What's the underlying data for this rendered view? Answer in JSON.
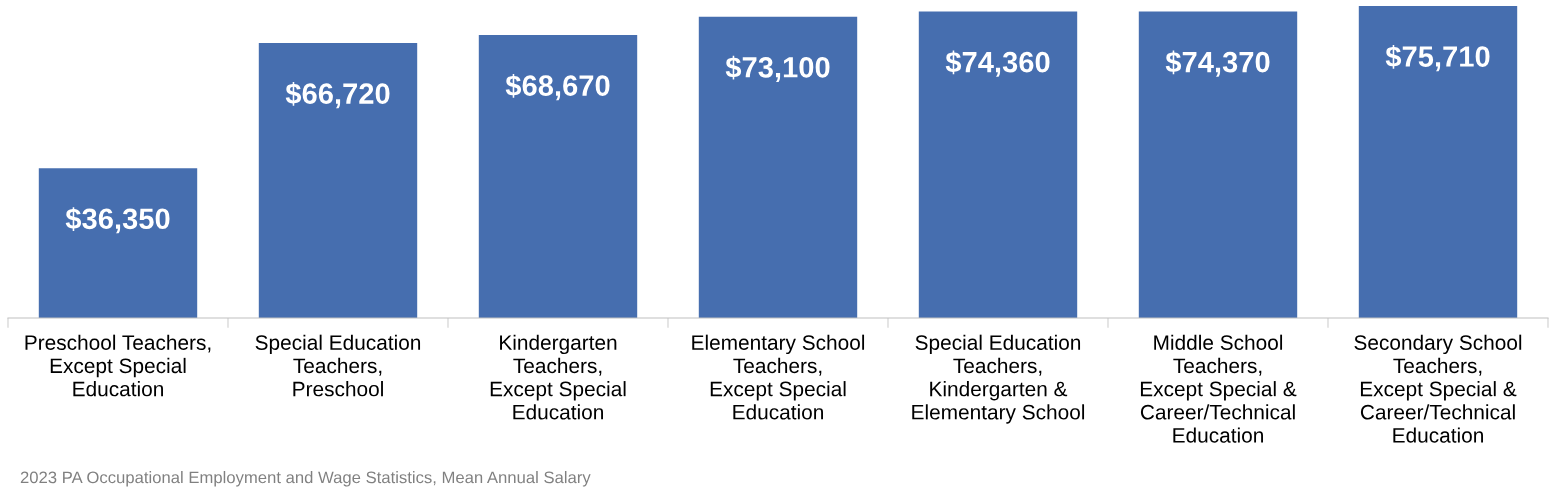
{
  "chart_data": {
    "type": "bar",
    "categories": [
      "Preschool Teachers,\nExcept Special\nEducation",
      "Special Education\nTeachers,\nPreschool",
      "Kindergarten\nTeachers,\nExcept Special\nEducation",
      "Elementary School\nTeachers,\nExcept Special\nEducation",
      "Special Education\nTeachers,\nKindergarten &\nElementary School",
      "Middle School\nTeachers,\nExcept Special &\nCareer/Technical\nEducation",
      "Secondary School\nTeachers,\nExcept Special &\nCareer/Technical\nEducation"
    ],
    "values": [
      36350,
      66720,
      68670,
      73100,
      74360,
      74370,
      75710
    ],
    "value_labels": [
      "$36,350",
      "$66,720",
      "$68,670",
      "$73,100",
      "$74,360",
      "$74,370",
      "$75,710"
    ],
    "color": "#466eaf",
    "annotations": [
      "2023 PA Occupational Employment and Wage Statistics, Mean Annual Salary"
    ]
  }
}
